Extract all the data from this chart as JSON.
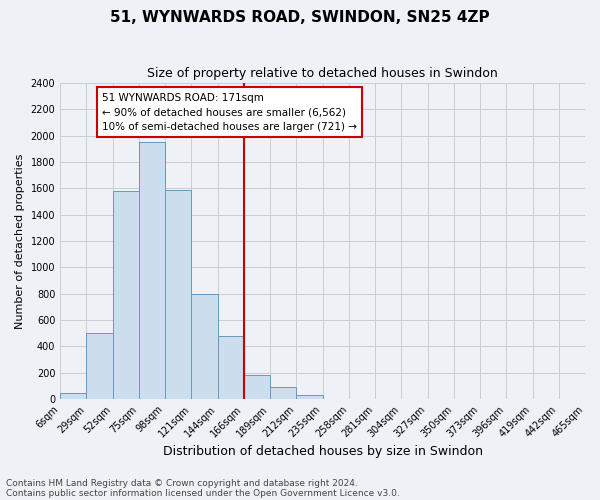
{
  "title": "51, WYNWARDS ROAD, SWINDON, SN25 4ZP",
  "subtitle": "Size of property relative to detached houses in Swindon",
  "xlabel": "Distribution of detached houses by size in Swindon",
  "ylabel": "Number of detached properties",
  "footer_lines": [
    "Contains HM Land Registry data © Crown copyright and database right 2024.",
    "Contains public sector information licensed under the Open Government Licence v3.0."
  ],
  "bin_labels": [
    "6sqm",
    "29sqm",
    "52sqm",
    "75sqm",
    "98sqm",
    "121sqm",
    "144sqm",
    "166sqm",
    "189sqm",
    "212sqm",
    "235sqm",
    "258sqm",
    "281sqm",
    "304sqm",
    "327sqm",
    "350sqm",
    "373sqm",
    "396sqm",
    "419sqm",
    "442sqm",
    "465sqm"
  ],
  "bar_heights": [
    50,
    500,
    1580,
    1950,
    1590,
    800,
    480,
    185,
    90,
    35,
    0,
    0,
    0,
    0,
    0,
    0,
    0,
    0,
    0,
    0
  ],
  "bar_color": "#ccdded",
  "bar_edge_color": "#6699bb",
  "vline_color": "#cc0000",
  "vline_x_index": 7.0,
  "annotation_line1": "51 WYNWARDS ROAD: 171sqm",
  "annotation_line2": "← 90% of detached houses are smaller (6,562)",
  "annotation_line3": "10% of semi-detached houses are larger (721) →",
  "annotation_box_color": "#ffffff",
  "annotation_box_edge": "#cc0000",
  "ylim": [
    0,
    2400
  ],
  "yticks": [
    0,
    200,
    400,
    600,
    800,
    1000,
    1200,
    1400,
    1600,
    1800,
    2000,
    2200,
    2400
  ],
  "grid_color": "#cccccc",
  "bg_color": "#eef2f7",
  "title_fontsize": 11,
  "subtitle_fontsize": 9,
  "xlabel_fontsize": 9,
  "ylabel_fontsize": 8,
  "tick_fontsize": 7,
  "footer_fontsize": 6.5,
  "annotation_fontsize": 7.5
}
